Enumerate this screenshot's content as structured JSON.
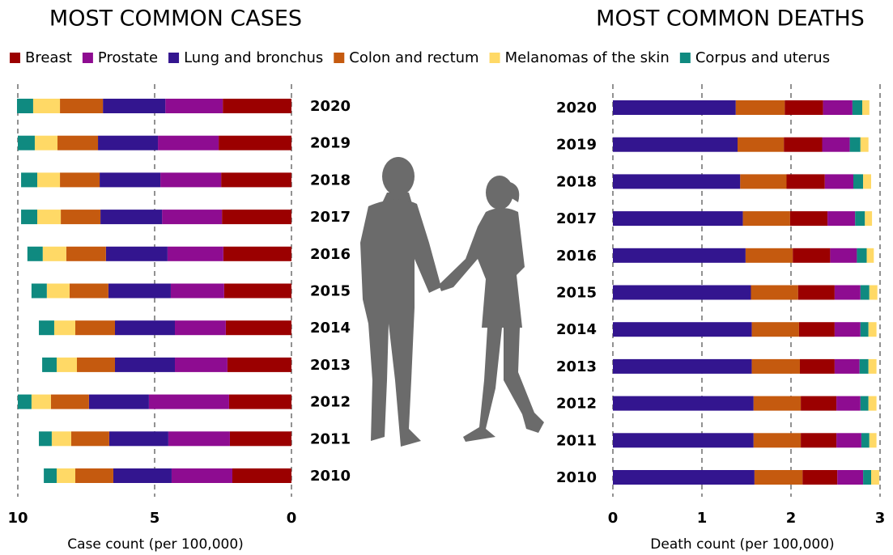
{
  "chart_data": [
    {
      "type": "bar",
      "orientation": "horizontal",
      "stacked": true,
      "title": "MOST COMMON CASES",
      "xlabel": "Case count (per 100,000)",
      "categories": [
        "2020",
        "2019",
        "2018",
        "2017",
        "2016",
        "2015",
        "2014",
        "2013",
        "2012",
        "2011",
        "2010"
      ],
      "xlim": [
        10,
        0
      ],
      "xticks": [
        10,
        5,
        0
      ],
      "grid": true,
      "series": [
        {
          "name": "Breast",
          "color": "#9b0000",
          "values": [
            2.51,
            2.66,
            2.57,
            2.54,
            2.49,
            2.46,
            2.4,
            2.34,
            2.28,
            2.25,
            2.16
          ]
        },
        {
          "name": "Prostate",
          "color": "#8e0c91",
          "values": [
            2.1,
            2.22,
            2.22,
            2.19,
            2.04,
            1.95,
            1.86,
            1.92,
            2.93,
            2.25,
            2.22
          ]
        },
        {
          "name": "Lung and bronchus",
          "color": "#33158f",
          "values": [
            2.28,
            2.19,
            2.22,
            2.25,
            2.25,
            2.28,
            2.19,
            2.19,
            2.19,
            2.16,
            2.13
          ]
        },
        {
          "name": "Colon and rectum",
          "color": "#c55a0f",
          "values": [
            1.57,
            1.48,
            1.45,
            1.45,
            1.45,
            1.42,
            1.45,
            1.39,
            1.39,
            1.39,
            1.39
          ]
        },
        {
          "name": "Melanomas of the skin",
          "color": "#ffd966",
          "values": [
            0.98,
            0.83,
            0.83,
            0.86,
            0.86,
            0.83,
            0.77,
            0.74,
            0.71,
            0.71,
            0.68
          ]
        },
        {
          "name": "Corpus and uterus",
          "color": "#0f8a80",
          "values": [
            0.59,
            0.62,
            0.59,
            0.59,
            0.56,
            0.56,
            0.56,
            0.53,
            0.5,
            0.47,
            0.47
          ]
        }
      ]
    },
    {
      "type": "bar",
      "orientation": "horizontal",
      "stacked": true,
      "title": "MOST COMMON DEATHS",
      "xlabel": "Death count (per 100,000)",
      "categories": [
        "2020",
        "2019",
        "2018",
        "2017",
        "2016",
        "2015",
        "2014",
        "2013",
        "2012",
        "2011",
        "2010"
      ],
      "xlim": [
        0,
        3
      ],
      "xticks": [
        0,
        1,
        2,
        3
      ],
      "grid": true,
      "series": [
        {
          "name": "Breast",
          "color": "#9b0000",
          "values": [
            0.43,
            0.43,
            0.43,
            0.42,
            0.42,
            0.41,
            0.4,
            0.39,
            0.4,
            0.4,
            0.39
          ]
        },
        {
          "name": "Prostate",
          "color": "#8e0c91",
          "values": [
            0.33,
            0.31,
            0.32,
            0.31,
            0.3,
            0.29,
            0.29,
            0.28,
            0.27,
            0.28,
            0.29
          ]
        },
        {
          "name": "Lung and bronchus",
          "color": "#33158f",
          "values": [
            1.38,
            1.4,
            1.43,
            1.46,
            1.49,
            1.55,
            1.56,
            1.56,
            1.58,
            1.58,
            1.59
          ]
        },
        {
          "name": "Colon and rectum",
          "color": "#c55a0f",
          "values": [
            0.55,
            0.52,
            0.52,
            0.53,
            0.53,
            0.53,
            0.53,
            0.54,
            0.53,
            0.53,
            0.54
          ]
        },
        {
          "name": "Melanomas of the skin",
          "color": "#ffd966",
          "values": [
            0.08,
            0.09,
            0.09,
            0.08,
            0.08,
            0.09,
            0.09,
            0.09,
            0.09,
            0.08,
            0.09
          ]
        },
        {
          "name": "Corpus and uterus",
          "color": "#0f8a80",
          "values": [
            0.11,
            0.12,
            0.11,
            0.11,
            0.11,
            0.1,
            0.09,
            0.1,
            0.09,
            0.09,
            0.09
          ]
        }
      ]
    }
  ]
}
